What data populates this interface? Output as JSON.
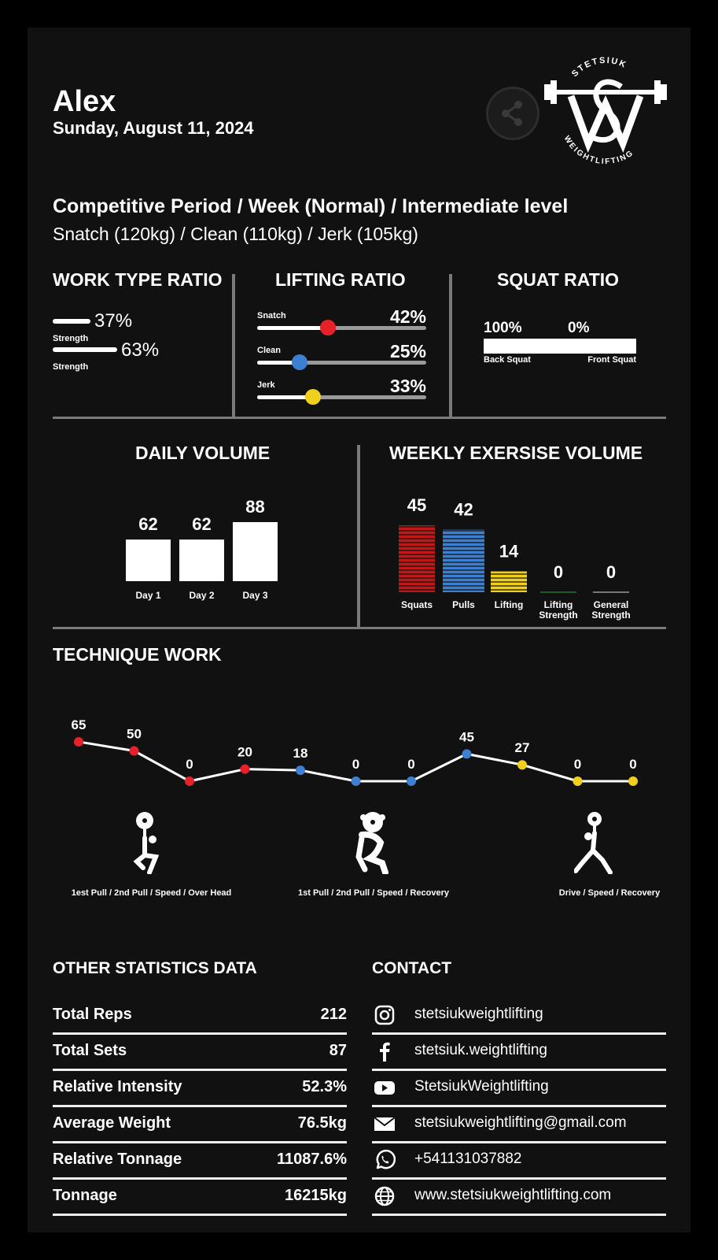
{
  "header": {
    "name": "Alex",
    "date": "Sunday, August 11, 2024",
    "logo_text_top": "STETSIUK",
    "logo_text_bottom": "WEIGHTLIFTING"
  },
  "program": {
    "title": "Competitive Period / Week (Normal) / Intermediate level",
    "subtitle": "Snatch (120kg) / Clean (110kg) / Jerk (105kg)"
  },
  "work_type_ratio": {
    "title": "WORK TYPE RATIO",
    "items": [
      {
        "label": "Strength",
        "percent": "37%",
        "fraction": 0.37
      },
      {
        "label": "Strength",
        "percent": "63%",
        "fraction": 0.63
      }
    ]
  },
  "lifting_ratio": {
    "title": "LIFTING RATIO",
    "items": [
      {
        "label": "Snatch",
        "percent": "42%",
        "fraction": 0.42,
        "color": "#e8202a"
      },
      {
        "label": "Clean",
        "percent": "25%",
        "fraction": 0.25,
        "color": "#3d7fd1"
      },
      {
        "label": "Jerk",
        "percent": "33%",
        "fraction": 0.33,
        "color": "#f0d01a"
      }
    ]
  },
  "squat_ratio": {
    "title": "SQUAT RATIO",
    "left_percent": "100%",
    "right_percent": "0%",
    "left_label": "Back Squat",
    "right_label": "Front Squat",
    "left_fraction": 1.0
  },
  "daily_volume": {
    "title": "DAILY VOLUME",
    "chart_data": {
      "type": "bar",
      "categories": [
        "Day 1",
        "Day 2",
        "Day 3"
      ],
      "values": [
        62,
        62,
        88
      ]
    }
  },
  "weekly_volume": {
    "title": "WEEKLY EXERSISE VOLUME",
    "chart_data": {
      "type": "bar",
      "categories": [
        "Squats",
        "Pulls",
        "Lifting",
        "Lifting Strength",
        "General Strength"
      ],
      "values": [
        45,
        42,
        14,
        0,
        0
      ],
      "colors": [
        "#c01717",
        "#3d7fd1",
        "#f0d01a",
        "#2aa84a",
        "#dddddd"
      ]
    }
  },
  "technique": {
    "title": "TECHNIQUE WORK",
    "chart_data": {
      "type": "line",
      "values": [
        65,
        50,
        0,
        20,
        18,
        0,
        0,
        45,
        27,
        0,
        0
      ],
      "colors": [
        "#e8202a",
        "#e8202a",
        "#e8202a",
        "#e8202a",
        "#3d7fd1",
        "#3d7fd1",
        "#3d7fd1",
        "#3d7fd1",
        "#f0d01a",
        "#f0d01a",
        "#f0d01a"
      ]
    },
    "groups": [
      {
        "label": "1est Pull / 2nd Pull / Speed / Over Head",
        "icon": "snatch-lifter-icon"
      },
      {
        "label": "1st Pull / 2nd Pull / Speed / Recovery",
        "icon": "clean-lifter-icon"
      },
      {
        "label": "Drive / Speed / Recovery",
        "icon": "jerk-lifter-icon"
      }
    ]
  },
  "other_stats": {
    "title": "OTHER STATISTICS DATA",
    "rows": [
      {
        "label": "Total Reps",
        "value": "212"
      },
      {
        "label": "Total Sets",
        "value": "87"
      },
      {
        "label": "Relative Intensity",
        "value": "52.3%"
      },
      {
        "label": "Average Weight",
        "value": "76.5kg"
      },
      {
        "label": "Relative Tonnage",
        "value": "11087.6%"
      },
      {
        "label": "Tonnage",
        "value": "16215kg"
      }
    ]
  },
  "contact": {
    "title": "CONTACT",
    "rows": [
      {
        "icon": "instagram-icon",
        "text": "stetsiukweightlifting"
      },
      {
        "icon": "facebook-icon",
        "text": "stetsiuk.weightlifting"
      },
      {
        "icon": "youtube-icon",
        "text": "StetsiukWeightlifting"
      },
      {
        "icon": "email-icon",
        "text": "stetsiukweightlifting@gmail.com"
      },
      {
        "icon": "whatsapp-icon",
        "text": "+541131037882"
      },
      {
        "icon": "globe-icon",
        "text": "www.stetsiukweightlifting.com"
      }
    ]
  }
}
